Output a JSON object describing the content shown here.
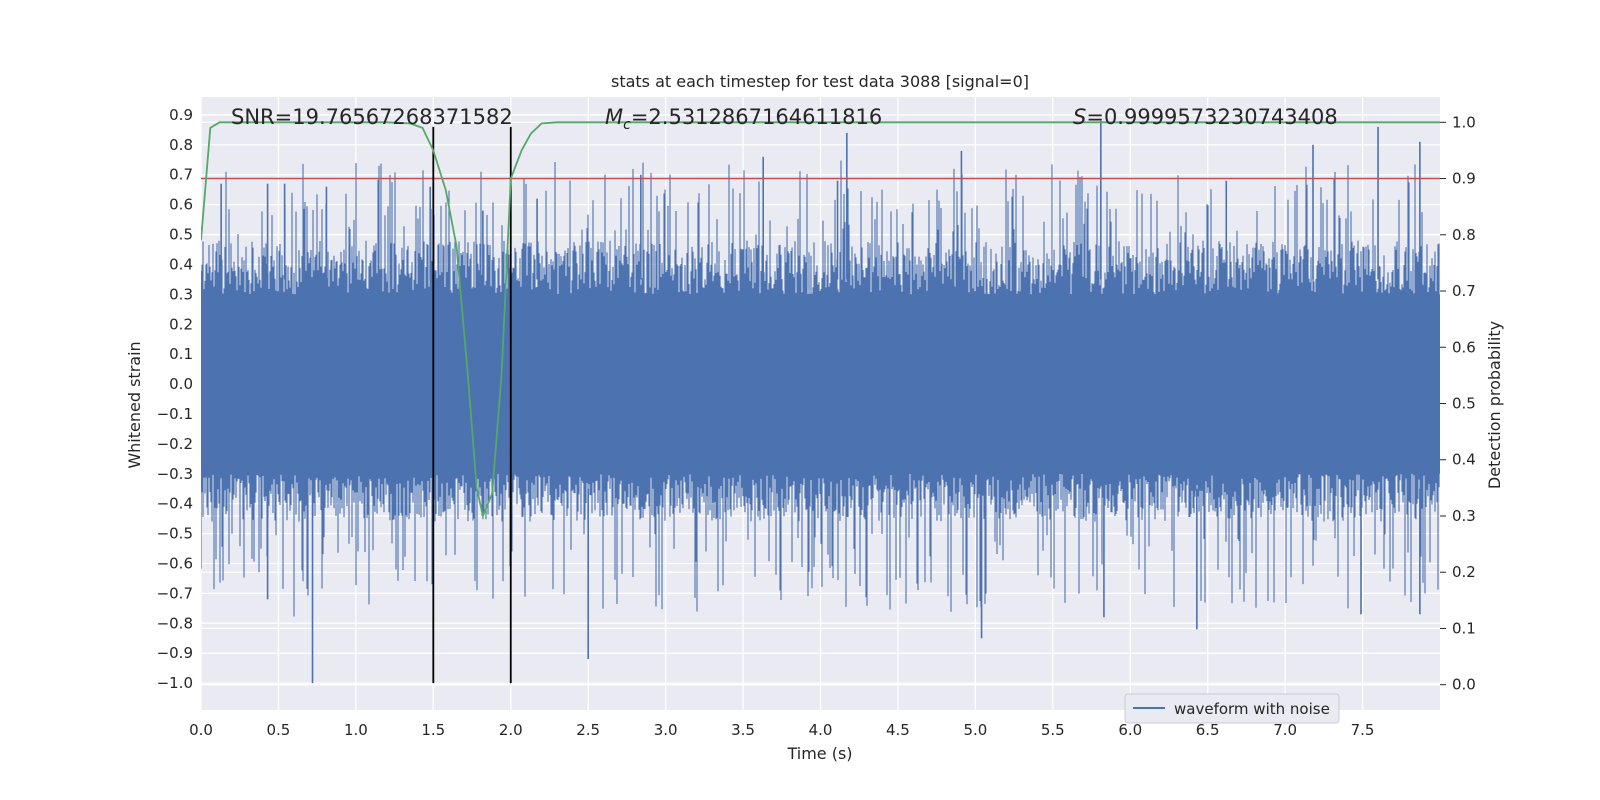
{
  "chart_data": {
    "type": "line",
    "title": "stats at each timestep for test data 3088 [signal=0]",
    "xlabel": "Time (s)",
    "ylabel": "Whitened strain",
    "y2label": "Detection probability",
    "xlim": [
      0.0,
      8.0
    ],
    "ylim": [
      -1.09,
      0.96
    ],
    "y2lim": [
      -0.045,
      1.045
    ],
    "x_ticks": [
      0.0,
      0.5,
      1.0,
      1.5,
      2.0,
      2.5,
      3.0,
      3.5,
      4.0,
      4.5,
      5.0,
      5.5,
      6.0,
      6.5,
      7.0,
      7.5
    ],
    "x_tick_labels": [
      "0.0",
      "0.5",
      "1.0",
      "1.5",
      "2.0",
      "2.5",
      "3.0",
      "3.5",
      "4.0",
      "4.5",
      "5.0",
      "5.5",
      "6.0",
      "6.5",
      "7.0",
      "7.5"
    ],
    "y_ticks": [
      0.9,
      0.8,
      0.7,
      0.6,
      0.5,
      0.4,
      0.3,
      0.2,
      0.1,
      0.0,
      -0.1,
      -0.2,
      -0.3,
      -0.4,
      -0.5,
      -0.6,
      -0.7,
      -0.8,
      -0.9,
      -1.0
    ],
    "y_tick_labels": [
      "0.9",
      "0.8",
      "0.7",
      "0.6",
      "0.5",
      "0.4",
      "0.3",
      "0.2",
      "0.1",
      "0.0",
      "−0.1",
      "−0.2",
      "−0.3",
      "−0.4",
      "−0.5",
      "−0.6",
      "−0.7",
      "−0.8",
      "−0.9",
      "−1.0"
    ],
    "y2_ticks": [
      1.0,
      0.9,
      0.8,
      0.7,
      0.6,
      0.5,
      0.4,
      0.3,
      0.2,
      0.1,
      0.0
    ],
    "y2_tick_labels": [
      "1.0",
      "0.9",
      "0.8",
      "0.7",
      "0.6",
      "0.5",
      "0.4",
      "0.3",
      "0.2",
      "0.1",
      "0.0"
    ],
    "threshold": {
      "value": 0.9,
      "axis": "right",
      "color": "#c44e52"
    },
    "vlines": [
      {
        "x": 1.5,
        "y_from": -1.0,
        "y_to": 0.86
      },
      {
        "x": 2.0,
        "y_from": -1.0,
        "y_to": 0.86
      }
    ],
    "annotations": {
      "snr": "SNR=19.76567268371582",
      "mc_prefix": "M",
      "mc_sub": "c",
      "mc_value": "=2.5312867164611816",
      "s_prefix": "S",
      "s_value": "=0.9999573230743408"
    },
    "legend": {
      "label": "waveform with noise",
      "placement": "lower-right"
    },
    "series": [
      {
        "name": "waveform with noise",
        "axis": "left",
        "color": "#4c72b0",
        "description": "dense noisy whitened strain, approx. 0.25 s to 0.5 s envelope with spikes",
        "spikes": [
          {
            "x": 0.72,
            "y": -1.0
          },
          {
            "x": 0.13,
            "y": 0.67
          },
          {
            "x": 0.43,
            "y": 0.67
          },
          {
            "x": 0.43,
            "y": -0.72
          },
          {
            "x": 0.54,
            "y": 0.67
          },
          {
            "x": 0.81,
            "y": 0.66
          },
          {
            "x": 1.48,
            "y": 0.66
          },
          {
            "x": 1.82,
            "y": 0.58
          },
          {
            "x": 2.17,
            "y": 0.62
          },
          {
            "x": 2.5,
            "y": -0.92
          },
          {
            "x": 2.84,
            "y": 0.7
          },
          {
            "x": 3.63,
            "y": 0.76
          },
          {
            "x": 4.11,
            "y": 0.68
          },
          {
            "x": 4.17,
            "y": 0.84
          },
          {
            "x": 4.91,
            "y": 0.78
          },
          {
            "x": 5.04,
            "y": -0.85
          },
          {
            "x": 5.81,
            "y": 0.88
          },
          {
            "x": 5.83,
            "y": -0.78
          },
          {
            "x": 6.43,
            "y": -0.82
          },
          {
            "x": 6.62,
            "y": 0.68
          },
          {
            "x": 7.18,
            "y": 0.8
          },
          {
            "x": 7.6,
            "y": 0.86
          },
          {
            "x": 7.49,
            "y": -0.77
          },
          {
            "x": 7.87,
            "y": 0.81
          },
          {
            "x": 7.87,
            "y": -0.77
          }
        ]
      },
      {
        "name": "detection probability",
        "axis": "right",
        "color": "#55a868",
        "x": [
          0.0,
          0.06,
          0.12,
          0.2,
          0.4,
          0.6,
          0.8,
          1.0,
          1.2,
          1.35,
          1.43,
          1.5,
          1.58,
          1.65,
          1.72,
          1.78,
          1.82,
          1.88,
          1.94,
          2.0,
          2.07,
          2.13,
          2.2,
          2.3,
          2.6,
          3.0,
          4.0,
          5.0,
          6.0,
          7.0,
          8.0
        ],
        "y": [
          0.79,
          0.99,
          1.0,
          1.0,
          1.0,
          1.0,
          1.0,
          1.0,
          1.0,
          0.998,
          0.99,
          0.95,
          0.88,
          0.78,
          0.56,
          0.35,
          0.3,
          0.34,
          0.55,
          0.9,
          0.95,
          0.98,
          0.998,
          1.0,
          1.0,
          1.0,
          1.0,
          1.0,
          1.0,
          1.0,
          1.0
        ]
      }
    ]
  }
}
